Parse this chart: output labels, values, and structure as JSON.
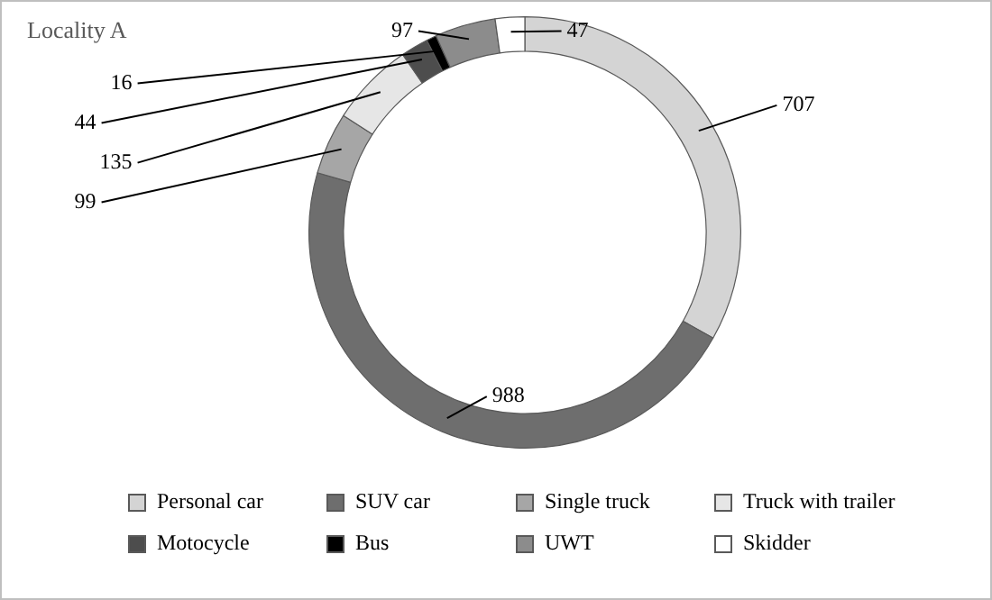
{
  "chart_data": {
    "type": "donut",
    "title": "Locality A",
    "categories": [
      "Personal car",
      "SUV car",
      "Single truck",
      "Truck with trailer",
      "Motocycle",
      "Bus",
      "UWT",
      "Skidder"
    ],
    "values": [
      707,
      988,
      99,
      135,
      44,
      16,
      97,
      47
    ],
    "colors": [
      "#d4d4d4",
      "#6e6e6e",
      "#a6a6a6",
      "#e6e6e6",
      "#4d4d4d",
      "#000000",
      "#8c8c8c",
      "#ffffff"
    ],
    "data_labels": true,
    "legend": "bottom"
  }
}
